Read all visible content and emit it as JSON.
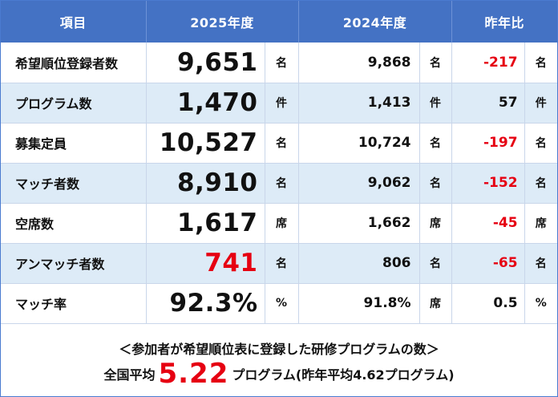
{
  "table": {
    "headers": [
      "項目",
      "2025年度",
      "2024年度",
      "昨年比"
    ],
    "rows": [
      {
        "label": "希望順位登録者数",
        "v2025": "9,651",
        "u2025": "名",
        "v2024": "9,868",
        "u2024": "名",
        "diff": "-217",
        "udiff": "名",
        "diff_red": true,
        "v2025_red": false
      },
      {
        "label": "プログラム数",
        "v2025": "1,470",
        "u2025": "件",
        "v2024": "1,413",
        "u2024": "件",
        "diff": "57",
        "udiff": "件",
        "diff_red": false,
        "v2025_red": false
      },
      {
        "label": "募集定員",
        "v2025": "10,527",
        "u2025": "名",
        "v2024": "10,724",
        "u2024": "名",
        "diff": "-197",
        "udiff": "名",
        "diff_red": true,
        "v2025_red": false
      },
      {
        "label": "マッチ者数",
        "v2025": "8,910",
        "u2025": "名",
        "v2024": "9,062",
        "u2024": "名",
        "diff": "-152",
        "udiff": "名",
        "diff_red": true,
        "v2025_red": false
      },
      {
        "label": "空席数",
        "v2025": "1,617",
        "u2025": "席",
        "v2024": "1,662",
        "u2024": "席",
        "diff": "-45",
        "udiff": "席",
        "diff_red": true,
        "v2025_red": false
      },
      {
        "label": "アンマッチ者数",
        "v2025": "741",
        "u2025": "名",
        "v2024": "806",
        "u2024": "名",
        "diff": "-65",
        "udiff": "名",
        "diff_red": true,
        "v2025_red": true
      },
      {
        "label": "マッチ率",
        "v2025": "92.3%",
        "u2025": "%",
        "v2024": "91.8%",
        "u2024": "席",
        "diff": "0.5",
        "udiff": "%",
        "diff_red": false,
        "v2025_red": false
      }
    ]
  },
  "footer": {
    "note": "＜参加者が希望順位表に登録した研修プログラムの数＞",
    "avg_prefix": "全国平均",
    "avg_value": "5.22",
    "avg_suffix": "プログラム(昨年平均4.62プログラム)"
  },
  "colors": {
    "header_bg": "#4472c4",
    "alt_row_bg": "#ddebf7",
    "negative": "#e60012"
  }
}
